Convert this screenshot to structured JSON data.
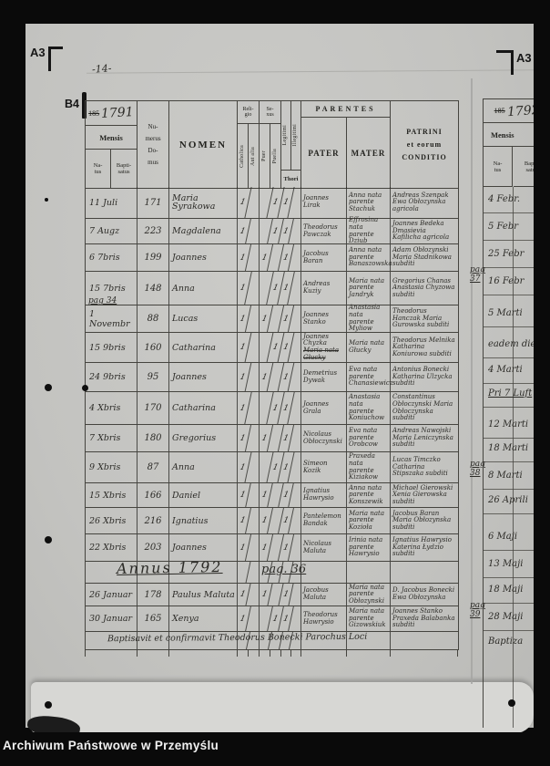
{
  "frame_markers": {
    "top_left": "A3",
    "top_right": "A3",
    "left": "B4",
    "page_note": "-14-"
  },
  "caption": "Archiwum Państwowe w Przemyślu",
  "page_left": {
    "year_old": "185",
    "year": "1791",
    "header": {
      "mensis": "Mensis",
      "natus": [
        "Na-",
        "tus"
      ],
      "baptisatus": [
        "Bapti-",
        "satus"
      ],
      "numerus": [
        "Nu-",
        "merus",
        "Do-",
        "mus"
      ],
      "nomen": "NOMEN",
      "religio": [
        "Reli-",
        "gio"
      ],
      "sexus": [
        "Se-",
        "xus"
      ],
      "catholica": "Catholica",
      "aut_alia": "Aut alia",
      "puer": "Puer",
      "puella": "Puella",
      "legitimi": "Legitimi",
      "illegitimi": "Illegitimi",
      "thori": "Thori",
      "parentes": "PARENTES",
      "pater": "PATER",
      "mater": "MATER",
      "patrini": [
        "PATRINI",
        "et eorum",
        "CONDITIO"
      ]
    },
    "rows": [
      {
        "date": "11 Juli",
        "house": "171",
        "name": "Maria Syrakowa",
        "ticks": {
          "catholica": "1",
          "aut_alia": "",
          "puer": "",
          "puella": "1",
          "legitimi": "1",
          "illegitimi": ""
        },
        "pater": "Joannes Lirak",
        "mater": "Anna nata parente Stachuk",
        "patrini": "Andreas Szenpak Ewa Obłozynska agricola"
      },
      {
        "date": "7 Augz",
        "house": "223",
        "name": "Magdalena",
        "ticks": {
          "catholica": "1",
          "aut_alia": "",
          "puer": "",
          "puella": "1",
          "legitimi": "1",
          "illegitimi": ""
        },
        "pater": "Theodorus Pawczak",
        "mater": "Effrosina nata parente Dziub",
        "patrini": "Joannes Bedeka Dmasievia Kafilicha agricola"
      },
      {
        "date": "6 7bris",
        "house": "199",
        "name": "Joannes",
        "ticks": {
          "catholica": "1",
          "aut_alia": "",
          "puer": "1",
          "puella": "",
          "legitimi": "1",
          "illegitimi": ""
        },
        "pater": "Jacobus Baran",
        "mater": "Anna nata parente Banaszowska",
        "patrini": "Adam Obłozynski Maria Stadnikowa subditi"
      },
      {
        "date": "15 7bris",
        "house": "148",
        "name": "Anna",
        "ticks": {
          "catholica": "1",
          "aut_alia": "",
          "puer": "",
          "puella": "1",
          "legitimi": "1",
          "illegitimi": ""
        },
        "pater": "Andreas Kuziy",
        "mater": "Maria nata parente Jandryk",
        "patrini": "Gregorius Chanas Anastasia Chyzowa subditi"
      },
      {
        "date": "1 Novembr",
        "house": "88",
        "name": "Lucas",
        "ticks": {
          "catholica": "1",
          "aut_alia": "",
          "puer": "1",
          "puella": "",
          "legitimi": "1",
          "illegitimi": ""
        },
        "pater": "Joannes Stanko",
        "mater": "Anastasia nata parente Myliow",
        "patrini": "Theodorus Hanczak Maria Gurowska subditi"
      },
      {
        "date": "15 9bris",
        "house": "160",
        "name": "Catharina",
        "ticks": {
          "catholica": "1",
          "aut_alia": "",
          "puer": "",
          "puella": "1",
          "legitimi": "1",
          "illegitimi": ""
        },
        "pater": "Joannes Chyzka",
        "pater_struck": "Maria nata Głucky",
        "mater": "Maria nata Głucky",
        "patrini": "Theodorus Melnika Katharina Koniurowa subditi"
      },
      {
        "date": "24 9bris",
        "house": "95",
        "name": "Joannes",
        "ticks": {
          "catholica": "1",
          "aut_alia": "",
          "puer": "1",
          "puella": "",
          "legitimi": "1",
          "illegitimi": ""
        },
        "pater": "Demetrius Dywak",
        "mater": "Eva nata parente Chanasiewicz",
        "patrini": "Antonius Bonecki Katharina Ulzycka subditi"
      },
      {
        "date": "4 Xbris",
        "house": "170",
        "name": "Catharina",
        "ticks": {
          "catholica": "1",
          "aut_alia": "",
          "puer": "",
          "puella": "1",
          "legitimi": "1",
          "illegitimi": ""
        },
        "pater": "Joannes Grala",
        "mater": "Anastasia nata parente Koniuchow",
        "patrini": "Constantinus Obłoczynski Maria Obłoczynska subditi"
      },
      {
        "date": "7 Xbris",
        "house": "180",
        "name": "Gregorius",
        "ticks": {
          "catholica": "1",
          "aut_alia": "",
          "puer": "1",
          "puella": "",
          "legitimi": "1",
          "illegitimi": ""
        },
        "pater": "Nicolaus Obłoczynski",
        "mater": "Eva nata parente Orobcow",
        "patrini": "Andreas Nawojski Maria Leniczynska subditi"
      },
      {
        "date": "9 Xbris",
        "house": "87",
        "name": "Anna",
        "ticks": {
          "catholica": "1",
          "aut_alia": "",
          "puer": "",
          "puella": "1",
          "legitimi": "1",
          "illegitimi": ""
        },
        "pater": "Simeon Kozik",
        "mater": "Praxeda nata parente Kiziakow",
        "patrini": "Lucas Timczko Catharina Stipszaka subditi"
      },
      {
        "date": "15 Xbris",
        "house": "166",
        "name": "Daniel",
        "ticks": {
          "catholica": "1",
          "aut_alia": "",
          "puer": "1",
          "puella": "",
          "legitimi": "1",
          "illegitimi": ""
        },
        "pater": "Ignatius Hawrysio",
        "mater": "Anna nata parente Konszewik",
        "patrini": "Michael Gierowski Xenia Gierowska subditi"
      },
      {
        "date": "26 Xbris",
        "house": "216",
        "name": "Ignatius",
        "ticks": {
          "catholica": "1",
          "aut_alia": "",
          "puer": "1",
          "puella": "",
          "legitimi": "1",
          "illegitimi": ""
        },
        "pater": "Pantelemon Bandak",
        "mater": "Maria nata parente Kozioła",
        "patrini": "Jacobus Baran Maria Obłozynska subditi"
      },
      {
        "date": "22 Xbris",
        "house": "203",
        "name": "Joannes",
        "ticks": {
          "catholica": "1",
          "aut_alia": "",
          "puer": "1",
          "puella": "",
          "legitimi": "1",
          "illegitimi": ""
        },
        "pater": "Nicolaus Maluta",
        "mater": "Irinia nata parente Hawrysio",
        "patrini": "Ignatius Hawrysio Katerina Łydzio subditi"
      },
      {
        "date": "26 Januar",
        "house": "178",
        "name": "Paulus Maluta",
        "ticks": {
          "catholica": "1",
          "aut_alia": "",
          "puer": "1",
          "puella": "",
          "legitimi": "1",
          "illegitimi": ""
        },
        "pater": "Jacobus Maluta",
        "mater": "Maria nata parente Obłozynski",
        "patrini": "D. Jacobus Bonecki Ewa Obłozynska"
      },
      {
        "date": "30 Januar",
        "house": "165",
        "name": "Xenya",
        "ticks": {
          "catholica": "1",
          "aut_alia": "",
          "puer": "",
          "puella": "1",
          "legitimi": "1",
          "illegitimi": ""
        },
        "pater": "Theodorus Hawrysio",
        "mater": "Maria nata parente Gizowskiuk",
        "patrini": "Joannes Stanko Praxeda Balabanka subditi"
      }
    ],
    "annotations": {
      "pag_34": "pag 34",
      "annus_divider": "Annus 1792",
      "annus_pag": "pag. 36",
      "baptism_note": "Baptisavit et confirmavit Theodorus Bonecki Parochus Loci"
    }
  },
  "page_right": {
    "year_old": "185",
    "year": "1792",
    "header": {
      "mensis": "Mensis",
      "natus": [
        "Na-",
        "tus"
      ],
      "baptisatus": [
        "Bapti-",
        "satus"
      ]
    },
    "entries": [
      {
        "date": "4 Febr."
      },
      {
        "date": "5 Febr"
      },
      {
        "date": "25 Febr"
      },
      {
        "date": "16 Febr",
        "pag": "pag 37"
      },
      {
        "date": "5 Marti"
      },
      {
        "date": "eadem die"
      },
      {
        "date": "4 Marti"
      },
      {
        "date": "Pri 7 Luft",
        "underline": true
      },
      {
        "date": "12 Marti"
      },
      {
        "date": "18 Marti"
      },
      {
        "date": "8 Marti",
        "pag": "pag 38"
      },
      {
        "date": "26 Aprili"
      },
      {
        "date": "6 Maji"
      },
      {
        "date": "13 Maji"
      },
      {
        "date": "18 Maji"
      },
      {
        "date": "28 Maji",
        "pag": "pag 39"
      },
      {
        "date": "Baptiza"
      }
    ]
  }
}
